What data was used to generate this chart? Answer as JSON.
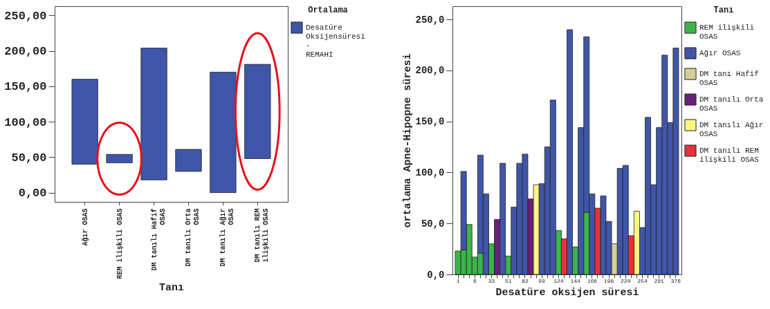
{
  "chart_data": [
    {
      "type": "bar",
      "xlabel": "Tanı",
      "legend_title": "Ortalama",
      "legend": "top right",
      "categories": [
        "Ağır OSAS",
        "REM ilişkili OSAS",
        "DM tanılı Hafif OSAS",
        "DM tanılı Orta OSAS",
        "DM tanılı Ağır OSAS",
        "DM tanılı REM ilişkili OSAS"
      ],
      "series": [
        {
          "name": "Desatüre Oksijensüresi - REMAHI",
          "color": "#3f56a8",
          "base": [
            40,
            42,
            18,
            30,
            0,
            48
          ],
          "values": [
            120,
            12,
            186,
            31,
            170,
            133
          ]
        }
      ],
      "ylim": [
        -13,
        263
      ],
      "yticks": [
        {
          "value": 0,
          "label": "0,00"
        },
        {
          "value": 50,
          "label": "50,00"
        },
        {
          "value": 100,
          "label": "100,00"
        },
        {
          "value": 150,
          "label": "150,00"
        },
        {
          "value": 200,
          "label": "200,00"
        },
        {
          "value": 250,
          "label": "250,00"
        }
      ]
    },
    {
      "type": "bar",
      "stacked": true,
      "xlabel": "Desatüre oksijen süresi",
      "ylabel": "ortalama Apne-Hipopne süresi",
      "legend_title": "Tanı",
      "legend": "top right",
      "categories": [
        "1",
        null,
        null,
        "6",
        null,
        null,
        "33",
        null,
        null,
        "51",
        null,
        null,
        "82",
        null,
        null,
        "99",
        null,
        null,
        "124",
        null,
        null,
        "144",
        null,
        null,
        "166",
        null,
        null,
        "198",
        null,
        null,
        "220",
        null,
        null,
        "254",
        null,
        null,
        "291",
        null,
        null,
        "376"
      ],
      "series": [
        {
          "name": "REM ilişkili OSAS",
          "color": "#3cb54a",
          "values": [
            23,
            24,
            49,
            17,
            21,
            null,
            30,
            null,
            null,
            18,
            null,
            null,
            null,
            null,
            null,
            null,
            null,
            null,
            43,
            null,
            null,
            27,
            null,
            61,
            null,
            null,
            null,
            null,
            null,
            null,
            null,
            null,
            null,
            null,
            null,
            null,
            null,
            null,
            null,
            null
          ]
        },
        {
          "name": "Ağır OSAS",
          "color": "#3f56a8",
          "values": [
            null,
            77,
            null,
            null,
            96,
            79,
            null,
            null,
            109,
            null,
            66,
            109,
            118,
            null,
            null,
            89,
            125,
            171,
            null,
            null,
            240,
            null,
            144,
            172,
            79,
            null,
            77,
            52,
            null,
            104,
            107,
            null,
            null,
            46,
            154,
            88,
            144,
            215,
            149,
            222
          ]
        },
        {
          "name": "DM tanı Hafif OSAS",
          "color": "#d6cf99",
          "values": [
            null,
            null,
            null,
            null,
            null,
            null,
            null,
            null,
            null,
            null,
            null,
            null,
            null,
            null,
            null,
            null,
            null,
            null,
            null,
            null,
            null,
            null,
            null,
            null,
            null,
            null,
            null,
            null,
            30,
            null,
            null,
            null,
            null,
            null,
            null,
            null,
            null,
            null,
            null,
            null
          ]
        },
        {
          "name": "DM tanılı Orta OSAS",
          "color": "#6b1f7a",
          "values": [
            null,
            null,
            null,
            null,
            null,
            null,
            null,
            54,
            null,
            null,
            null,
            null,
            null,
            74,
            null,
            null,
            null,
            null,
            null,
            null,
            null,
            null,
            null,
            null,
            null,
            null,
            null,
            null,
            null,
            null,
            null,
            null,
            null,
            null,
            null,
            null,
            null,
            null,
            null,
            null
          ]
        },
        {
          "name": "DM tanılı Ağır OSAS",
          "color": "#f9f77f",
          "values": [
            null,
            null,
            null,
            null,
            null,
            null,
            null,
            null,
            null,
            null,
            null,
            null,
            null,
            null,
            88,
            null,
            null,
            null,
            null,
            null,
            null,
            null,
            null,
            null,
            null,
            null,
            null,
            null,
            null,
            null,
            null,
            null,
            62,
            null,
            null,
            null,
            null,
            null,
            null,
            null
          ]
        },
        {
          "name": "DM tanılı REM ilişkili OSAS",
          "color": "#e8313a",
          "values": [
            null,
            null,
            null,
            null,
            null,
            null,
            null,
            null,
            null,
            null,
            null,
            null,
            null,
            null,
            null,
            null,
            null,
            null,
            null,
            35,
            null,
            null,
            null,
            null,
            null,
            65,
            null,
            null,
            null,
            null,
            null,
            38,
            null,
            null,
            null,
            null,
            null,
            null,
            null,
            null
          ]
        }
      ],
      "ylim": [
        0,
        263
      ],
      "yticks": [
        {
          "value": 0,
          "label": "0,0"
        },
        {
          "value": 50,
          "label": "50,0"
        },
        {
          "value": 100,
          "label": "100,0"
        },
        {
          "value": 150,
          "label": "150,0"
        },
        {
          "value": 200,
          "label": "200,0"
        },
        {
          "value": 250,
          "label": "250,0"
        }
      ]
    }
  ]
}
